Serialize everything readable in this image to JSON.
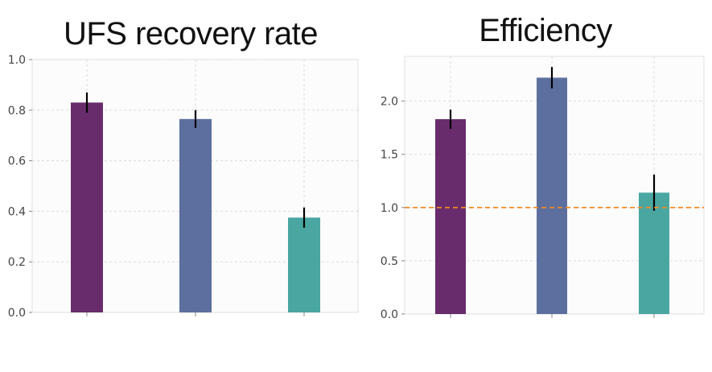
{
  "chart_data": [
    {
      "type": "bar",
      "title": "UFS recovery rate",
      "xlabel": "",
      "ylabel": "",
      "categories": [
        "",
        "",
        ""
      ],
      "values": [
        0.83,
        0.765,
        0.375
      ],
      "errors": [
        0.04,
        0.035,
        0.04
      ],
      "ylim": [
        0,
        1.0
      ],
      "yticks": [
        "0.0",
        "0.2",
        "0.4",
        "0.6",
        "0.8",
        "1.0"
      ],
      "colors": [
        "#5b1a5f",
        "#4f6396",
        "#3a9e98"
      ],
      "grid": true
    },
    {
      "type": "bar",
      "title": "Efficiency",
      "xlabel": "",
      "ylabel": "",
      "categories": [
        "",
        "",
        ""
      ],
      "values": [
        1.83,
        2.22,
        1.14
      ],
      "errors": [
        0.09,
        0.1,
        0.17
      ],
      "ylim": [
        0,
        2.42
      ],
      "yticks": [
        "0.0",
        "0.5",
        "1.0",
        "1.5",
        "2.0"
      ],
      "colors": [
        "#5b1a5f",
        "#4f6396",
        "#3a9e98"
      ],
      "reference_line": {
        "y": 1.0,
        "color": "#f08a24",
        "style": "dashed"
      },
      "grid": true
    }
  ]
}
